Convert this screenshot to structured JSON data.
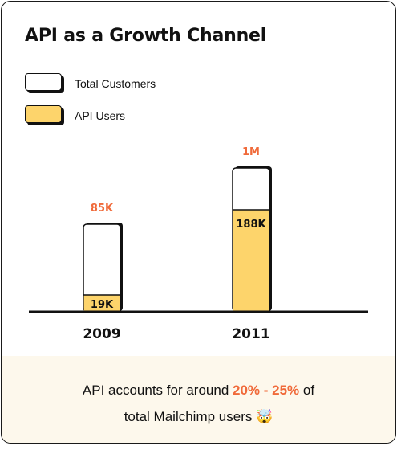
{
  "title": "API as a Growth Channel",
  "legend": [
    {
      "label": "Total Customers",
      "color": "#ffffff"
    },
    {
      "label": "API Users",
      "color": "#fdd46b"
    }
  ],
  "colors": {
    "total": "#ffffff",
    "api": "#fdd46b",
    "highlight": "#f06a3a",
    "ink": "#111111",
    "footer_bg": "#fdf8ec"
  },
  "chart_data": {
    "type": "bar",
    "categories": [
      "2009",
      "2011"
    ],
    "series": [
      {
        "name": "Total Customers",
        "values": [
          85000,
          1000000
        ],
        "labels": [
          "85K",
          "1M"
        ]
      },
      {
        "name": "API Users",
        "values": [
          19000,
          188000
        ],
        "labels": [
          "19K",
          "188K"
        ]
      }
    ],
    "title": "API as a Growth Channel",
    "xlabel": "",
    "ylabel": ""
  },
  "footer": {
    "line1_prefix": "API accounts for around",
    "highlight": "20% - 25%",
    "line1_suffix": "of",
    "line2": "total Mailchimp users",
    "emoji": "🤯"
  }
}
